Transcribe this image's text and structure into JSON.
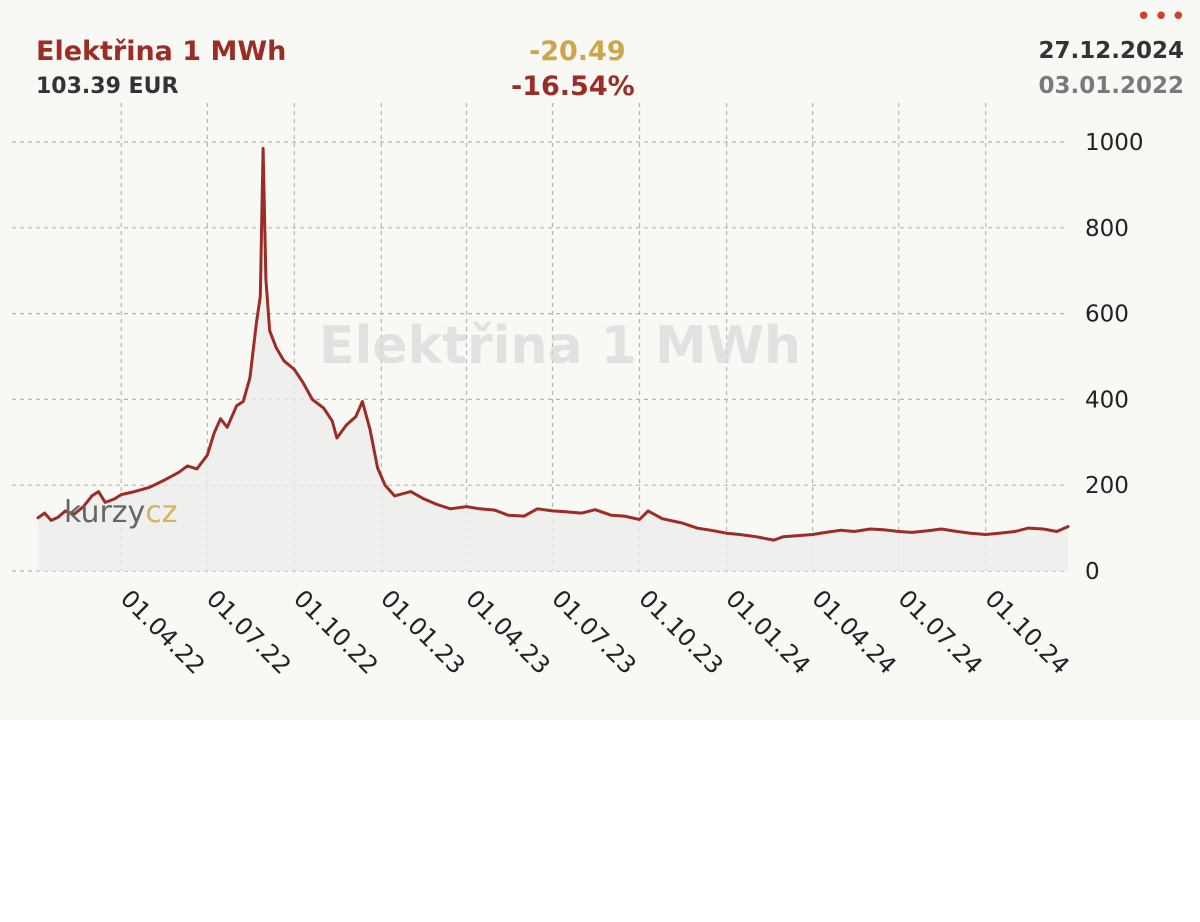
{
  "header": {
    "title": "Elektřina 1 MWh",
    "price": "103.39 EUR",
    "change_abs": "-20.49",
    "change_pct": "-16.54%",
    "date_end": "27.12.2024",
    "date_start": "03.01.2022",
    "menu_icon": "more-dots-icon"
  },
  "watermark": {
    "title": "Elektřina 1 MWh",
    "logo_part1": "kurzy",
    "logo_part2": "cz"
  },
  "colors": {
    "line": "#9b2d26",
    "title": "#9b2d26",
    "change_abs": "#cda54a",
    "grid": "#b5b5b5",
    "menu": "#d0402e",
    "background": "#f8f8f5"
  },
  "chart_data": {
    "type": "area",
    "title": "Elektřina 1 MWh",
    "xlabel": "",
    "ylabel": "",
    "x_range": [
      "2022-01-03",
      "2024-12-27"
    ],
    "ylim": [
      0,
      1000
    ],
    "y_ticks": [
      0,
      200,
      400,
      600,
      800,
      1000
    ],
    "y_axis_position": "right",
    "x_ticks": [
      {
        "date": "2022-04-01",
        "label": "01.04.22"
      },
      {
        "date": "2022-07-01",
        "label": "01.07.22"
      },
      {
        "date": "2022-10-01",
        "label": "01.10.22"
      },
      {
        "date": "2023-01-01",
        "label": "01.01.23"
      },
      {
        "date": "2023-04-01",
        "label": "01.04.23"
      },
      {
        "date": "2023-07-01",
        "label": "01.07.23"
      },
      {
        "date": "2023-10-01",
        "label": "01.10.23"
      },
      {
        "date": "2024-01-01",
        "label": "01.01.24"
      },
      {
        "date": "2024-04-01",
        "label": "01.04.24"
      },
      {
        "date": "2024-07-01",
        "label": "01.07.24"
      },
      {
        "date": "2024-10-01",
        "label": "01.10.24"
      }
    ],
    "grid": true,
    "series": [
      {
        "points": [
          [
            "2022-01-03",
            123.9
          ],
          [
            "2022-01-10",
            135
          ],
          [
            "2022-01-17",
            118
          ],
          [
            "2022-01-24",
            125
          ],
          [
            "2022-02-01",
            140
          ],
          [
            "2022-02-10",
            132
          ],
          [
            "2022-02-20",
            150
          ],
          [
            "2022-03-01",
            175
          ],
          [
            "2022-03-08",
            185
          ],
          [
            "2022-03-15",
            160
          ],
          [
            "2022-03-25",
            168
          ],
          [
            "2022-04-01",
            178
          ],
          [
            "2022-04-15",
            185
          ],
          [
            "2022-05-01",
            195
          ],
          [
            "2022-05-15",
            210
          ],
          [
            "2022-06-01",
            230
          ],
          [
            "2022-06-10",
            245
          ],
          [
            "2022-06-20",
            238
          ],
          [
            "2022-07-01",
            270
          ],
          [
            "2022-07-08",
            320
          ],
          [
            "2022-07-15",
            355
          ],
          [
            "2022-07-22",
            335
          ],
          [
            "2022-08-01",
            385
          ],
          [
            "2022-08-08",
            395
          ],
          [
            "2022-08-15",
            450
          ],
          [
            "2022-08-22",
            580
          ],
          [
            "2022-08-26",
            640
          ],
          [
            "2022-08-29",
            985
          ],
          [
            "2022-09-01",
            680
          ],
          [
            "2022-09-05",
            560
          ],
          [
            "2022-09-12",
            520
          ],
          [
            "2022-09-20",
            490
          ],
          [
            "2022-10-01",
            470
          ],
          [
            "2022-10-10",
            440
          ],
          [
            "2022-10-20",
            400
          ],
          [
            "2022-11-01",
            380
          ],
          [
            "2022-11-10",
            350
          ],
          [
            "2022-11-15",
            310
          ],
          [
            "2022-11-25",
            340
          ],
          [
            "2022-12-05",
            360
          ],
          [
            "2022-12-12",
            395
          ],
          [
            "2022-12-20",
            330
          ],
          [
            "2022-12-28",
            240
          ],
          [
            "2023-01-05",
            200
          ],
          [
            "2023-01-15",
            175
          ],
          [
            "2023-02-01",
            185
          ],
          [
            "2023-02-15",
            168
          ],
          [
            "2023-03-01",
            155
          ],
          [
            "2023-03-15",
            145
          ],
          [
            "2023-04-01",
            150
          ],
          [
            "2023-04-15",
            145
          ],
          [
            "2023-05-01",
            142
          ],
          [
            "2023-05-15",
            130
          ],
          [
            "2023-06-01",
            128
          ],
          [
            "2023-06-15",
            145
          ],
          [
            "2023-07-01",
            140
          ],
          [
            "2023-07-15",
            138
          ],
          [
            "2023-08-01",
            135
          ],
          [
            "2023-08-15",
            143
          ],
          [
            "2023-09-01",
            130
          ],
          [
            "2023-09-15",
            128
          ],
          [
            "2023-10-01",
            120
          ],
          [
            "2023-10-10",
            140
          ],
          [
            "2023-10-25",
            122
          ],
          [
            "2023-11-15",
            112
          ],
          [
            "2023-12-01",
            100
          ],
          [
            "2023-12-15",
            95
          ],
          [
            "2024-01-01",
            88
          ],
          [
            "2024-01-15",
            85
          ],
          [
            "2024-02-01",
            80
          ],
          [
            "2024-02-20",
            72
          ],
          [
            "2024-03-01",
            80
          ],
          [
            "2024-03-15",
            82
          ],
          [
            "2024-04-01",
            85
          ],
          [
            "2024-04-15",
            90
          ],
          [
            "2024-05-01",
            95
          ],
          [
            "2024-05-15",
            92
          ],
          [
            "2024-06-01",
            98
          ],
          [
            "2024-06-15",
            96
          ],
          [
            "2024-07-01",
            92
          ],
          [
            "2024-07-15",
            90
          ],
          [
            "2024-08-01",
            94
          ],
          [
            "2024-08-15",
            98
          ],
          [
            "2024-09-01",
            92
          ],
          [
            "2024-09-15",
            88
          ],
          [
            "2024-10-01",
            85
          ],
          [
            "2024-10-15",
            88
          ],
          [
            "2024-11-01",
            92
          ],
          [
            "2024-11-15",
            100
          ],
          [
            "2024-12-01",
            98
          ],
          [
            "2024-12-15",
            92
          ],
          [
            "2024-12-27",
            103.39
          ]
        ]
      }
    ]
  }
}
